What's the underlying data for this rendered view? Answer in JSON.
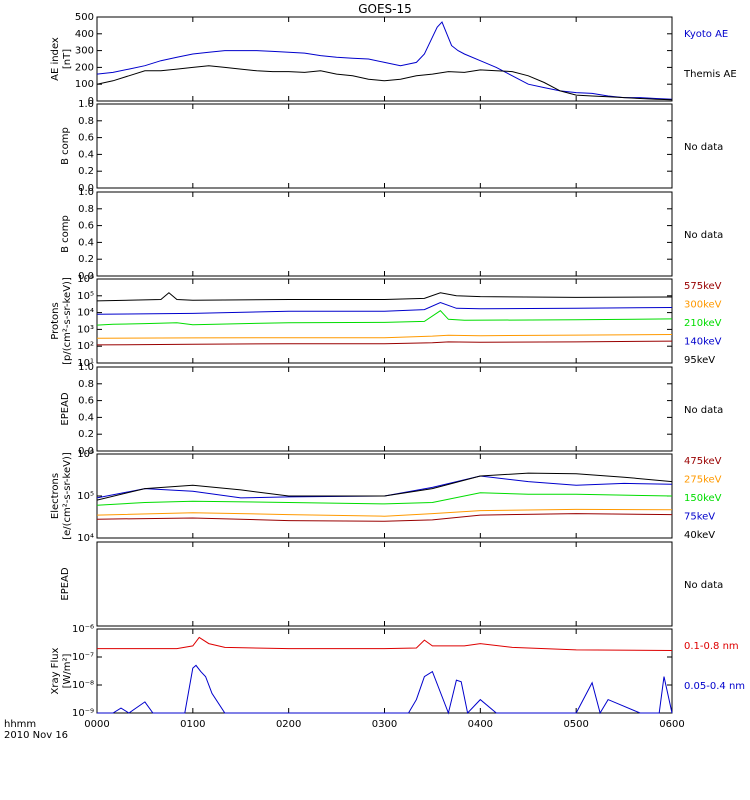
{
  "chart_data": {
    "type": "line",
    "title": "GOES-15",
    "x_unit_label": "hhmm",
    "date_label": "2010 Nov 16",
    "x_ticks": [
      "0000",
      "0100",
      "0200",
      "0300",
      "0400",
      "0500",
      "0600"
    ],
    "xlim": [
      0,
      360
    ],
    "panels": [
      {
        "id": "ae",
        "ylabel": [
          "AE index",
          "[nT]"
        ],
        "scale": "linear",
        "ylim": [
          0,
          500
        ],
        "yticks": [
          "0",
          "100",
          "200",
          "300",
          "400",
          "500"
        ],
        "series": [
          {
            "name": "Kyoto AE",
            "color": "#0000cc",
            "x": [
              0,
              10,
              20,
              30,
              40,
              50,
              60,
              70,
              80,
              90,
              100,
              110,
              120,
              130,
              140,
              150,
              160,
              170,
              180,
              190,
              200,
              205,
              210,
              213,
              216,
              219,
              222,
              226,
              230,
              240,
              250,
              260,
              270,
              280,
              290,
              300,
              310,
              320,
              330,
              340,
              350,
              360
            ],
            "y": [
              160,
              170,
              190,
              210,
              240,
              260,
              280,
              290,
              300,
              300,
              300,
              295,
              290,
              285,
              270,
              260,
              255,
              250,
              230,
              210,
              230,
              280,
              380,
              440,
              470,
              400,
              330,
              300,
              280,
              240,
              200,
              150,
              100,
              80,
              60,
              50,
              45,
              30,
              20,
              20,
              15,
              10
            ]
          },
          {
            "name": "Themis AE",
            "color": "#000000",
            "x": [
              0,
              10,
              20,
              30,
              40,
              50,
              60,
              70,
              80,
              90,
              100,
              110,
              120,
              130,
              140,
              150,
              160,
              170,
              180,
              190,
              200,
              210,
              220,
              230,
              240,
              250,
              260,
              270,
              280,
              290,
              300,
              310,
              320,
              330,
              340,
              350,
              360
            ],
            "y": [
              100,
              120,
              150,
              180,
              180,
              190,
              200,
              210,
              200,
              190,
              180,
              175,
              175,
              170,
              180,
              160,
              150,
              130,
              120,
              130,
              150,
              160,
              175,
              170,
              185,
              180,
              175,
              150,
              110,
              60,
              35,
              30,
              25,
              20,
              15,
              10,
              8
            ]
          }
        ]
      },
      {
        "id": "bcomp1",
        "ylabel": [
          "B comp"
        ],
        "scale": "linear",
        "ylim": [
          0,
          1
        ],
        "yticks": [
          "0.0",
          "0.2",
          "0.4",
          "0.6",
          "0.8",
          "1.0"
        ],
        "note": "No data",
        "series": []
      },
      {
        "id": "bcomp2",
        "ylabel": [
          "B comp"
        ],
        "scale": "linear",
        "ylim": [
          0,
          1
        ],
        "yticks": [
          "0.0",
          "0.2",
          "0.4",
          "0.6",
          "0.8",
          "1.0"
        ],
        "note": "No data",
        "series": []
      },
      {
        "id": "protons",
        "ylabel": [
          "Protons",
          "[p/(cm²-s-sr-keV)]"
        ],
        "scale": "log",
        "ylim_exp": [
          1,
          6
        ],
        "yticks": [
          "10¹",
          "10²",
          "10³",
          "10⁴",
          "10⁵",
          "10⁶"
        ],
        "series": [
          {
            "name": "575keV",
            "color": "#990000",
            "x": [
              0,
              60,
              120,
              180,
              210,
              220,
              240,
              300,
              360
            ],
            "y": [
              120,
              130,
              140,
              140,
              160,
              180,
              170,
              180,
              200
            ]
          },
          {
            "name": "300keV",
            "color": "#ff9900",
            "x": [
              0,
              60,
              120,
              180,
              210,
              220,
              240,
              300,
              360
            ],
            "y": [
              300,
              310,
              320,
              320,
              400,
              450,
              420,
              460,
              500
            ]
          },
          {
            "name": "210keV",
            "color": "#00dd00",
            "x": [
              0,
              10,
              30,
              50,
              60,
              120,
              180,
              205,
              215,
              220,
              230,
              300,
              360
            ],
            "y": [
              1800,
              2000,
              2200,
              2500,
              1900,
              2500,
              2600,
              3000,
              13000,
              4000,
              3500,
              3800,
              4200
            ]
          },
          {
            "name": "140keV",
            "color": "#0000cc",
            "x": [
              0,
              60,
              120,
              180,
              205,
              215,
              225,
              240,
              300,
              360
            ],
            "y": [
              8000,
              9000,
              12000,
              12000,
              15000,
              40000,
              18000,
              17000,
              18000,
              20000
            ]
          },
          {
            "name": "95keV",
            "color": "#000000",
            "x": [
              0,
              40,
              45,
              50,
              60,
              120,
              180,
              205,
              215,
              225,
              240,
              300,
              360
            ],
            "y": [
              50000,
              60000,
              150000,
              60000,
              55000,
              60000,
              60000,
              70000,
              150000,
              100000,
              90000,
              80000,
              85000
            ]
          }
        ]
      },
      {
        "id": "epead1",
        "ylabel": [
          "EPEAD"
        ],
        "scale": "linear",
        "ylim": [
          0,
          1
        ],
        "yticks": [
          "0.0",
          "0.2",
          "0.4",
          "0.6",
          "0.8",
          "1.0"
        ],
        "note": "No data",
        "series": []
      },
      {
        "id": "electrons",
        "ylabel": [
          "Electrons",
          "[e/(cm²-s-sr-keV)]"
        ],
        "scale": "log",
        "ylim_exp": [
          4,
          6
        ],
        "yticks": [
          "10⁴",
          "10⁵",
          "10⁶"
        ],
        "series": [
          {
            "name": "475keV",
            "color": "#990000",
            "x": [
              0,
              60,
              120,
              180,
              210,
              240,
              300,
              360
            ],
            "y": [
              28000,
              30000,
              26000,
              25000,
              27000,
              35000,
              38000,
              36000
            ]
          },
          {
            "name": "275keV",
            "color": "#ff9900",
            "x": [
              0,
              60,
              120,
              180,
              210,
              240,
              300,
              360
            ],
            "y": [
              35000,
              40000,
              36000,
              33000,
              38000,
              45000,
              48000,
              47000
            ]
          },
          {
            "name": "150keV",
            "color": "#00dd00",
            "x": [
              0,
              30,
              60,
              120,
              180,
              210,
              240,
              270,
              300,
              360
            ],
            "y": [
              60000,
              70000,
              75000,
              70000,
              65000,
              70000,
              120000,
              110000,
              110000,
              100000
            ]
          },
          {
            "name": "75keV",
            "color": "#0000cc",
            "x": [
              0,
              30,
              60,
              90,
              120,
              180,
              210,
              240,
              270,
              300,
              330,
              360
            ],
            "y": [
              90000,
              150000,
              130000,
              90000,
              95000,
              100000,
              160000,
              300000,
              220000,
              180000,
              200000,
              190000
            ]
          },
          {
            "name": "40keV",
            "color": "#000000",
            "x": [
              0,
              30,
              60,
              90,
              120,
              180,
              210,
              240,
              270,
              300,
              330,
              360
            ],
            "y": [
              80000,
              150000,
              180000,
              140000,
              100000,
              100000,
              150000,
              300000,
              350000,
              340000,
              280000,
              220000
            ]
          }
        ]
      },
      {
        "id": "epead2",
        "ylabel": [
          "EPEAD"
        ],
        "scale": "linear",
        "ylim": [
          0,
          1
        ],
        "yticks": [],
        "note": "No data",
        "series": []
      },
      {
        "id": "xray",
        "ylabel": [
          "Xray Flux",
          "[W/m²]"
        ],
        "scale": "log",
        "ylim_exp": [
          -9,
          -6
        ],
        "yticks": [
          "10⁻⁹",
          "10⁻⁸",
          "10⁻⁷",
          "10⁻⁶"
        ],
        "series": [
          {
            "name": "0.1-0.8 nm",
            "color": "#dd0000",
            "x": [
              0,
              50,
              60,
              64,
              70,
              80,
              120,
              180,
              200,
              205,
              210,
              230,
              240,
              260,
              300,
              360
            ],
            "y": [
              2e-07,
              2e-07,
              2.5e-07,
              5e-07,
              3e-07,
              2.2e-07,
              2e-07,
              2e-07,
              2.1e-07,
              4e-07,
              2.5e-07,
              2.5e-07,
              3e-07,
              2.2e-07,
              1.8e-07,
              1.7e-07
            ]
          },
          {
            "name": "0.05-0.4 nm",
            "color": "#0000cc",
            "x": [
              0,
              10,
              15,
              20,
              30,
              35,
              55,
              60,
              62,
              65,
              68,
              72,
              80,
              90,
              120,
              180,
              195,
              200,
              205,
              210,
              220,
              225,
              228,
              232,
              240,
              250,
              300,
              310,
              315,
              320,
              340,
              352,
              355,
              360
            ],
            "y": [
              1e-09,
              1e-09,
              1.5e-09,
              1e-09,
              2.5e-09,
              1e-09,
              1e-09,
              4e-08,
              5e-08,
              3e-08,
              2e-08,
              5e-09,
              1e-09,
              1e-09,
              1e-09,
              1e-09,
              1e-09,
              3e-09,
              2e-08,
              3e-08,
              1e-09,
              1.5e-08,
              1.3e-08,
              1e-09,
              3e-09,
              1e-09,
              1e-09,
              1.2e-08,
              1e-09,
              3e-09,
              1e-09,
              1e-09,
              2e-08,
              1e-09
            ]
          }
        ]
      }
    ]
  }
}
